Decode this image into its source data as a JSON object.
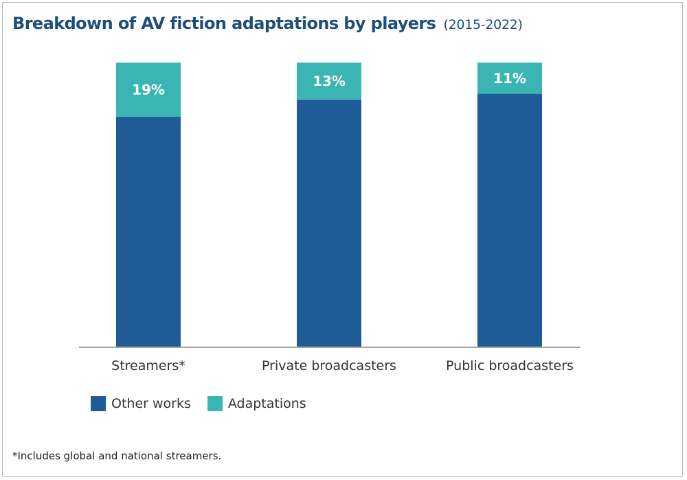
{
  "title": {
    "main": "Breakdown of AV fiction adaptations by players",
    "sub": "(2015-2022)"
  },
  "colors": {
    "other_works": "#1f5b96",
    "adaptations": "#3bb5b3",
    "axis": "#a6a6a6"
  },
  "chart_data": {
    "type": "bar",
    "stacked": true,
    "normalized": true,
    "categories": [
      "Streamers*",
      "Private broadcasters",
      "Public broadcasters"
    ],
    "series": [
      {
        "name": "Other works",
        "values": [
          81,
          87,
          89
        ]
      },
      {
        "name": "Adaptations",
        "values": [
          19,
          13,
          11
        ]
      }
    ],
    "data_labels": [
      "19%",
      "13%",
      "11%"
    ],
    "ylim": [
      0,
      100
    ],
    "grid": false,
    "legend_position": "bottom-left"
  },
  "legend": {
    "items": [
      {
        "label": "Other works"
      },
      {
        "label": "Adaptations"
      }
    ]
  },
  "footnote": "*Includes global and national streamers."
}
